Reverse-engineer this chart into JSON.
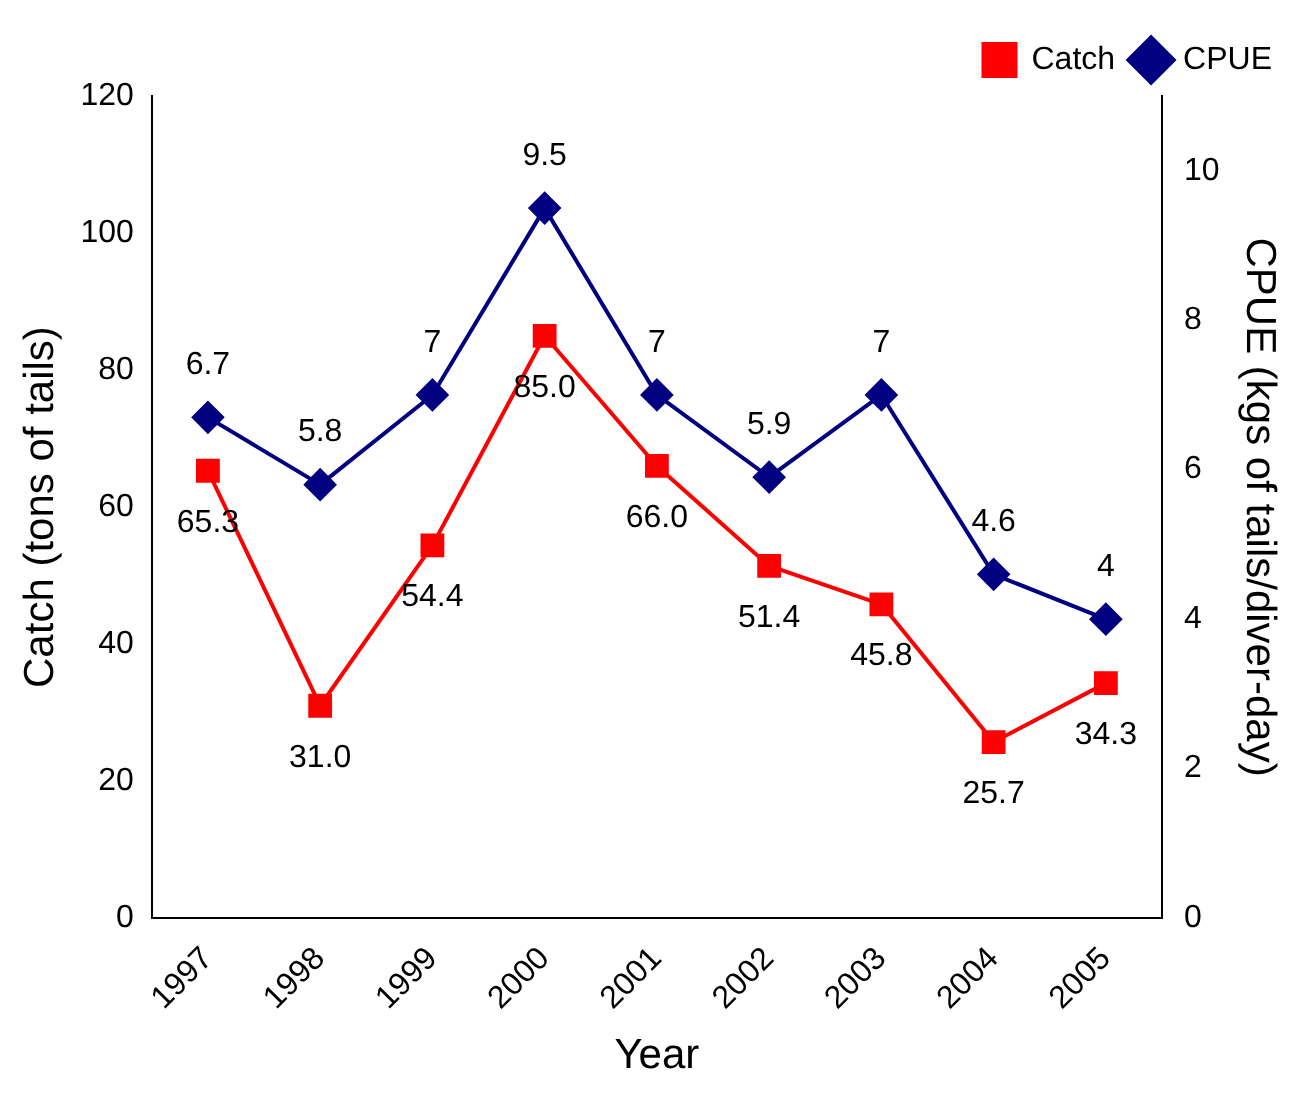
{
  "chart_data": {
    "type": "line",
    "xlabel": "Year",
    "ylabel": "Catch (tons of tails)",
    "y2label": "CPUE (kgs of tails/diver-day)",
    "categories": [
      "1997",
      "1998",
      "1999",
      "2000",
      "2001",
      "2002",
      "2003",
      "2004",
      "2005"
    ],
    "series": [
      {
        "name": "Catch",
        "color": "#ff0000",
        "marker": "square",
        "values": [
          65.3,
          31.0,
          54.4,
          85.0,
          66.0,
          51.4,
          45.8,
          25.7,
          34.3
        ],
        "value_labels": [
          "65.3",
          "31.0",
          "54.4",
          "85.0",
          "66.0",
          "51.4",
          "45.8",
          "25.7",
          "34.3"
        ]
      },
      {
        "name": "CPUE",
        "color": "#000080",
        "marker": "diamond",
        "axis": "y2",
        "values": [
          6.7,
          5.8,
          7,
          9.5,
          7,
          5.9,
          7,
          4.6,
          4
        ],
        "value_labels": [
          "6.7",
          "5.8",
          "7",
          "9.5",
          "7",
          "5.9",
          "7",
          "4.6",
          "4"
        ]
      }
    ],
    "ylim": [
      0,
      120
    ],
    "yticks": [
      0,
      20,
      40,
      60,
      80,
      100,
      120
    ],
    "y2lim": [
      0,
      11
    ],
    "y2ticks": [
      0,
      2,
      4,
      6,
      8,
      10
    ],
    "grid": false,
    "legend": "top right",
    "line_style": "solid"
  }
}
